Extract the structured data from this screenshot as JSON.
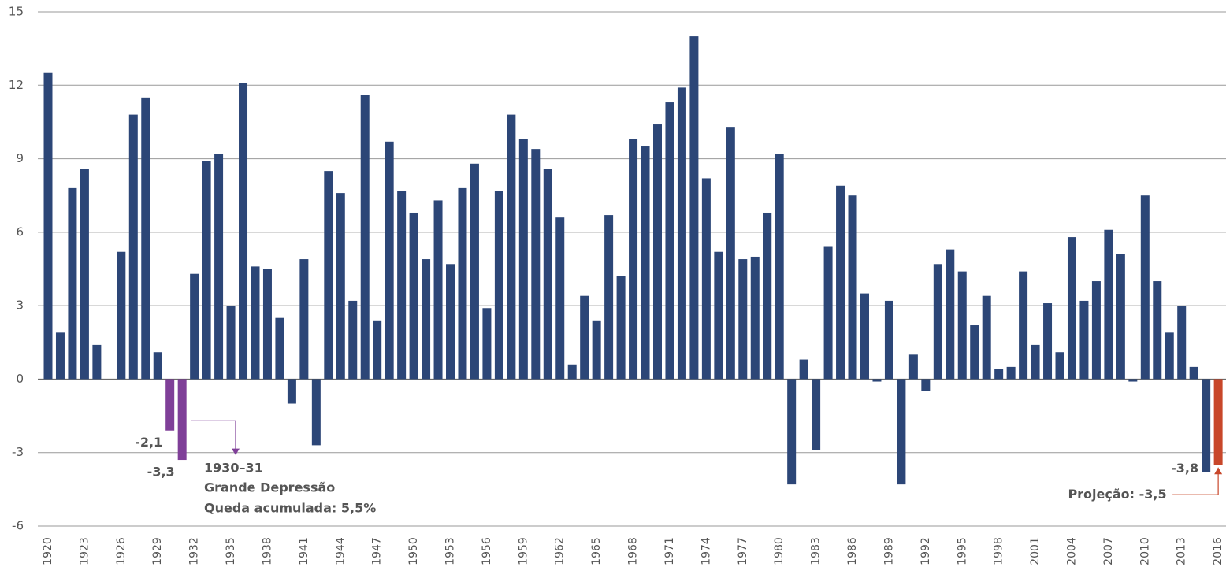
{
  "chart_data": {
    "type": "bar",
    "categories": [
      "1920",
      null,
      null,
      "1923",
      null,
      null,
      "1926",
      null,
      null,
      "1929",
      null,
      null,
      "1932",
      null,
      null,
      "1935",
      null,
      null,
      "1938",
      null,
      null,
      "1941",
      null,
      null,
      "1944",
      null,
      null,
      "1947",
      null,
      null,
      "1950",
      null,
      null,
      "1953",
      null,
      null,
      "1956",
      null,
      null,
      "1959",
      null,
      null,
      "1962",
      null,
      null,
      "1965",
      null,
      null,
      "1968",
      null,
      null,
      "1971",
      null,
      null,
      "1974",
      null,
      null,
      "1977",
      null,
      null,
      "1980",
      null,
      null,
      "1983",
      null,
      null,
      "1986",
      null,
      null,
      "1989",
      null,
      null,
      "1992",
      null,
      null,
      "1995",
      null,
      null,
      "1998",
      null,
      null,
      "2001",
      null,
      null,
      "2004",
      null,
      null,
      "2007",
      null,
      null,
      "2010",
      null,
      null,
      "2013",
      null,
      null,
      "2016"
    ],
    "values": [
      12.5,
      1.9,
      7.8,
      8.6,
      1.4,
      0,
      5.2,
      10.8,
      11.5,
      1.1,
      -2.1,
      -3.3,
      4.3,
      8.9,
      9.2,
      3.0,
      12.1,
      4.6,
      4.5,
      2.5,
      -1.0,
      4.9,
      -2.7,
      8.5,
      7.6,
      3.2,
      11.6,
      2.4,
      9.7,
      7.7,
      6.8,
      4.9,
      7.3,
      4.7,
      7.8,
      8.8,
      2.9,
      7.7,
      10.8,
      9.8,
      9.4,
      8.6,
      6.6,
      0.6,
      3.4,
      2.4,
      6.7,
      4.2,
      9.8,
      9.5,
      10.4,
      11.3,
      11.9,
      14.0,
      8.2,
      5.2,
      10.3,
      4.9,
      5.0,
      6.8,
      9.2,
      -4.3,
      0.8,
      -2.9,
      5.4,
      7.9,
      7.5,
      3.5,
      -0.1,
      3.2,
      -4.3,
      1.0,
      -0.5,
      4.7,
      5.3,
      4.4,
      2.2,
      3.4,
      0.4,
      0.5,
      4.4,
      1.4,
      3.1,
      1.1,
      5.8,
      3.2,
      4.0,
      6.1,
      5.1,
      -0.1,
      7.5,
      4.0,
      1.9,
      3.0,
      0.5,
      -3.8,
      -3.5
    ],
    "value_labels": [
      null,
      null,
      null,
      null,
      null,
      null,
      null,
      null,
      null,
      null,
      "-2,1",
      "-3,3",
      null,
      null,
      null,
      null,
      null,
      null,
      null,
      null,
      null,
      null,
      null,
      null,
      null,
      null,
      null,
      null,
      null,
      null,
      null,
      null,
      null,
      null,
      null,
      null,
      null,
      null,
      null,
      null,
      null,
      null,
      null,
      null,
      null,
      null,
      null,
      null,
      null,
      null,
      null,
      null,
      null,
      null,
      null,
      null,
      null,
      null,
      null,
      null,
      null,
      null,
      null,
      null,
      null,
      null,
      null,
      null,
      null,
      null,
      null,
      null,
      null,
      null,
      null,
      null,
      null,
      null,
      null,
      null,
      null,
      null,
      null,
      null,
      null,
      null,
      null,
      null,
      null,
      null,
      null,
      null,
      null,
      null,
      null,
      "-3,8",
      "Projeção: -3,5"
    ],
    "colors": [
      "#2c4677",
      "#2c4677",
      "#2c4677",
      "#2c4677",
      "#2c4677",
      "#2c4677",
      "#2c4677",
      "#2c4677",
      "#2c4677",
      "#2c4677",
      "#7f3f98",
      "#7f3f98",
      "#2c4677",
      "#2c4677",
      "#2c4677",
      "#2c4677",
      "#2c4677",
      "#2c4677",
      "#2c4677",
      "#2c4677",
      "#2c4677",
      "#2c4677",
      "#2c4677",
      "#2c4677",
      "#2c4677",
      "#2c4677",
      "#2c4677",
      "#2c4677",
      "#2c4677",
      "#2c4677",
      "#2c4677",
      "#2c4677",
      "#2c4677",
      "#2c4677",
      "#2c4677",
      "#2c4677",
      "#2c4677",
      "#2c4677",
      "#2c4677",
      "#2c4677",
      "#2c4677",
      "#2c4677",
      "#2c4677",
      "#2c4677",
      "#2c4677",
      "#2c4677",
      "#2c4677",
      "#2c4677",
      "#2c4677",
      "#2c4677",
      "#2c4677",
      "#2c4677",
      "#2c4677",
      "#2c4677",
      "#2c4677",
      "#2c4677",
      "#2c4677",
      "#2c4677",
      "#2c4677",
      "#2c4677",
      "#2c4677",
      "#2c4677",
      "#2c4677",
      "#2c4677",
      "#2c4677",
      "#2c4677",
      "#2c4677",
      "#2c4677",
      "#2c4677",
      "#2c4677",
      "#2c4677",
      "#2c4677",
      "#2c4677",
      "#2c4677",
      "#2c4677",
      "#2c4677",
      "#2c4677",
      "#2c4677",
      "#2c4677",
      "#2c4677",
      "#2c4677",
      "#2c4677",
      "#2c4677",
      "#2c4677",
      "#2c4677",
      "#2c4677",
      "#2c4677",
      "#2c4677",
      "#2c4677",
      "#2c4677",
      "#2c4677",
      "#2c4677",
      "#2c4677",
      "#2c4677",
      "#2c4677",
      "#2c4677",
      "#c8472a"
    ],
    "ylim": [
      -6,
      15
    ],
    "yticks": [
      -6,
      -3,
      0,
      3,
      6,
      9,
      12,
      15
    ],
    "grid": true,
    "annotation": {
      "title": "1930–31",
      "lines": [
        "Grande Depressão",
        "Queda acumulada: 5,5%"
      ],
      "color": "#7f3f98"
    }
  }
}
